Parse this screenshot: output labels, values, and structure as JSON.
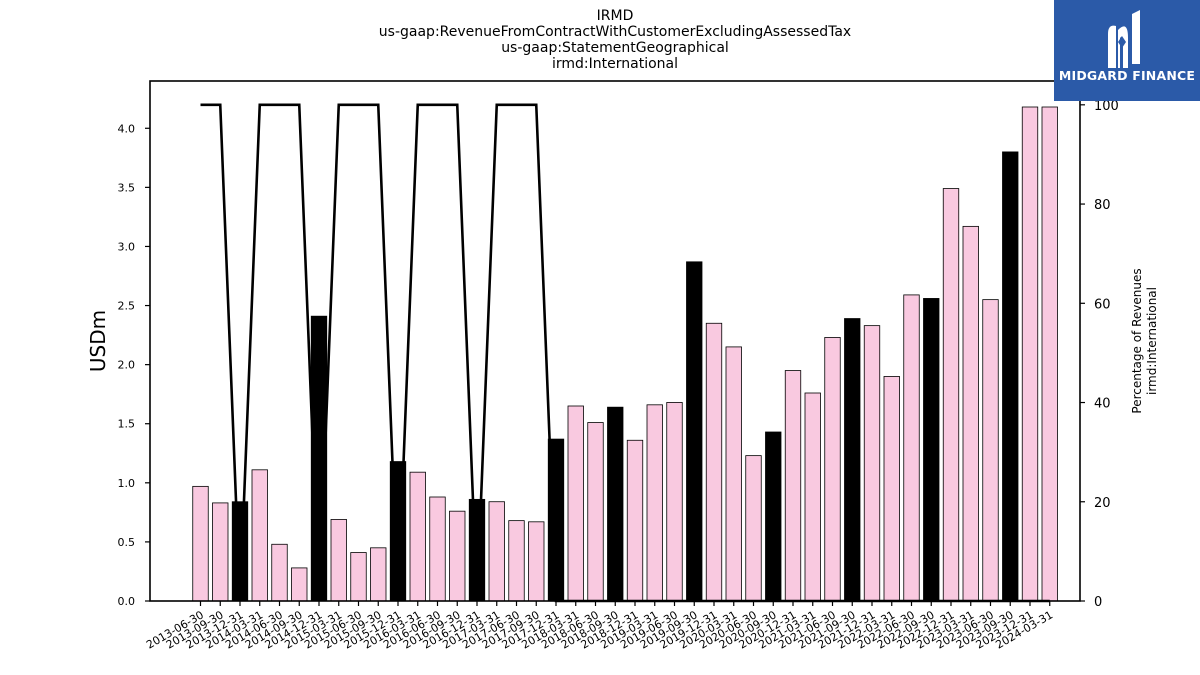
{
  "chart_data": {
    "type": "bar",
    "title": [
      "IRMD",
      "us-gaap:RevenueFromContractWithCustomerExcludingAssessedTax",
      "us-gaap:StatementGeographical",
      "irmd:International"
    ],
    "ylabel": "USDm",
    "ylabel_right": [
      "Percentage of Revenues",
      "irmd:International"
    ],
    "ylim": [
      0,
      4.4
    ],
    "ylim_right": [
      0,
      104.8
    ],
    "yticks": [
      "0.0",
      "0.5",
      "1.0",
      "1.5",
      "2.0",
      "2.5",
      "3.0",
      "3.5",
      "4.0"
    ],
    "yticks_right": [
      "0",
      "20",
      "40",
      "60",
      "80",
      "100"
    ],
    "categories": [
      "2013-06-30",
      "2013-09-30",
      "2013-12-31",
      "2014-03-31",
      "2014-06-30",
      "2014-09-30",
      "2014-12-31",
      "2015-03-31",
      "2015-06-30",
      "2015-09-30",
      "2015-12-31",
      "2016-03-31",
      "2016-06-30",
      "2016-09-30",
      "2016-12-31",
      "2017-03-31",
      "2017-06-30",
      "2017-09-30",
      "2017-12-31",
      "2018-03-31",
      "2018-06-30",
      "2018-09-30",
      "2018-12-31",
      "2019-03-31",
      "2019-06-30",
      "2019-09-30",
      "2019-12-31",
      "2020-03-31",
      "2020-06-30",
      "2020-09-30",
      "2020-12-31",
      "2021-03-31",
      "2021-06-30",
      "2021-09-30",
      "2021-12-31",
      "2022-03-31",
      "2022-06-30",
      "2022-09-30",
      "2022-12-31",
      "2023-03-31",
      "2023-06-30",
      "2023-09-30",
      "2023-12-31",
      "2024-03-31"
    ],
    "values": [
      0.97,
      0.83,
      0.84,
      1.11,
      0.48,
      0.28,
      2.41,
      0.69,
      0.41,
      0.45,
      1.18,
      1.09,
      0.88,
      0.76,
      0.86,
      0.84,
      0.68,
      0.67,
      1.37,
      1.65,
      1.51,
      1.64,
      1.36,
      1.66,
      1.68,
      2.87,
      2.35,
      2.15,
      1.23,
      1.43,
      1.95,
      1.76,
      2.23,
      2.39,
      2.33,
      1.9,
      2.59,
      2.56,
      3.49,
      3.17,
      2.55,
      3.8,
      4.18,
      4.18
    ],
    "bar_colors": [
      "pink",
      "pink",
      "black",
      "pink",
      "pink",
      "pink",
      "black",
      "pink",
      "pink",
      "pink",
      "black",
      "pink",
      "pink",
      "pink",
      "black",
      "pink",
      "pink",
      "pink",
      "black",
      "pink",
      "pink",
      "black",
      "pink",
      "pink",
      "pink",
      "black",
      "pink",
      "pink",
      "pink",
      "black",
      "pink",
      "pink",
      "pink",
      "black",
      "pink",
      "pink",
      "pink",
      "black",
      "pink",
      "pink",
      "pink",
      "black",
      "pink",
      "pink"
    ],
    "line": {
      "name": "Percentage of Revenues",
      "values": [
        100,
        100,
        0,
        100,
        100,
        100,
        0,
        100,
        100,
        100,
        0,
        100,
        100,
        100,
        0,
        100,
        100,
        100,
        0,
        0,
        0,
        0,
        0,
        0,
        0,
        0,
        0,
        0,
        0,
        0,
        0,
        0,
        0,
        0,
        0,
        0,
        0,
        0,
        0,
        0,
        0,
        0,
        0,
        0
      ]
    },
    "colors": {
      "pink": "#f9c9e0",
      "black": "#000000",
      "line": "#000000"
    },
    "grid": false
  },
  "logo": {
    "text": "MIDGARD FINANCE",
    "icon": "midgard-logo-icon",
    "background": "#2b5aa8"
  }
}
